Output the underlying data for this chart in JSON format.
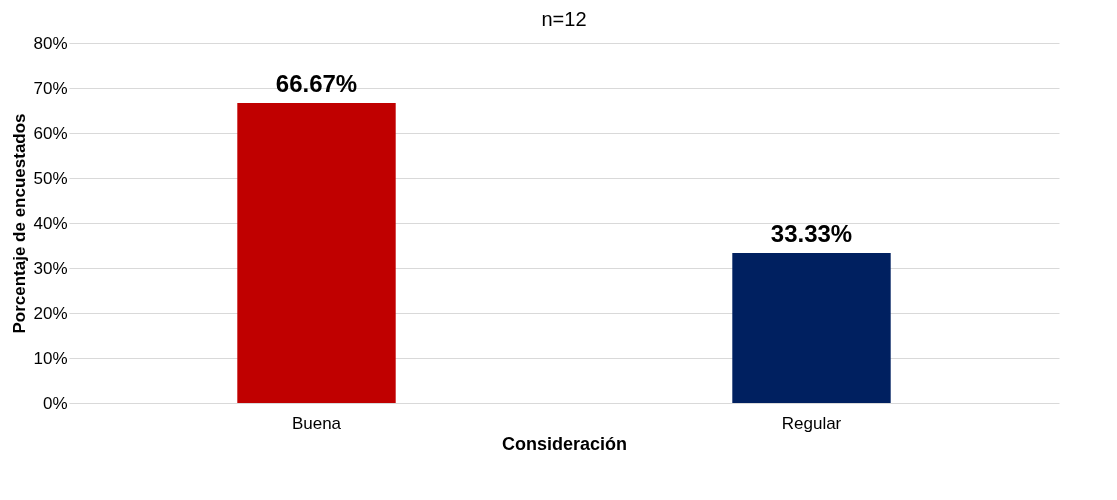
{
  "chart_data": {
    "type": "bar",
    "subtitle": "n=12",
    "xlabel": "Consideración",
    "ylabel": "Porcentaje de encuestados",
    "categories": [
      "Buena",
      "Regular"
    ],
    "values": [
      66.67,
      33.33
    ],
    "colors": [
      "#c00000",
      "#002060"
    ],
    "value_labels": [
      "66.67%",
      "33.33%"
    ],
    "ylim": [
      0,
      80
    ],
    "yticks": [
      {
        "value": 0,
        "label": "0%"
      },
      {
        "value": 10,
        "label": "10%"
      },
      {
        "value": 20,
        "label": "20%"
      },
      {
        "value": 30,
        "label": "30%"
      },
      {
        "value": 40,
        "label": "40%"
      },
      {
        "value": 50,
        "label": "50%"
      },
      {
        "value": 60,
        "label": "60%"
      },
      {
        "value": 70,
        "label": "70%"
      },
      {
        "value": 80,
        "label": "80%"
      }
    ],
    "grid": "y"
  }
}
